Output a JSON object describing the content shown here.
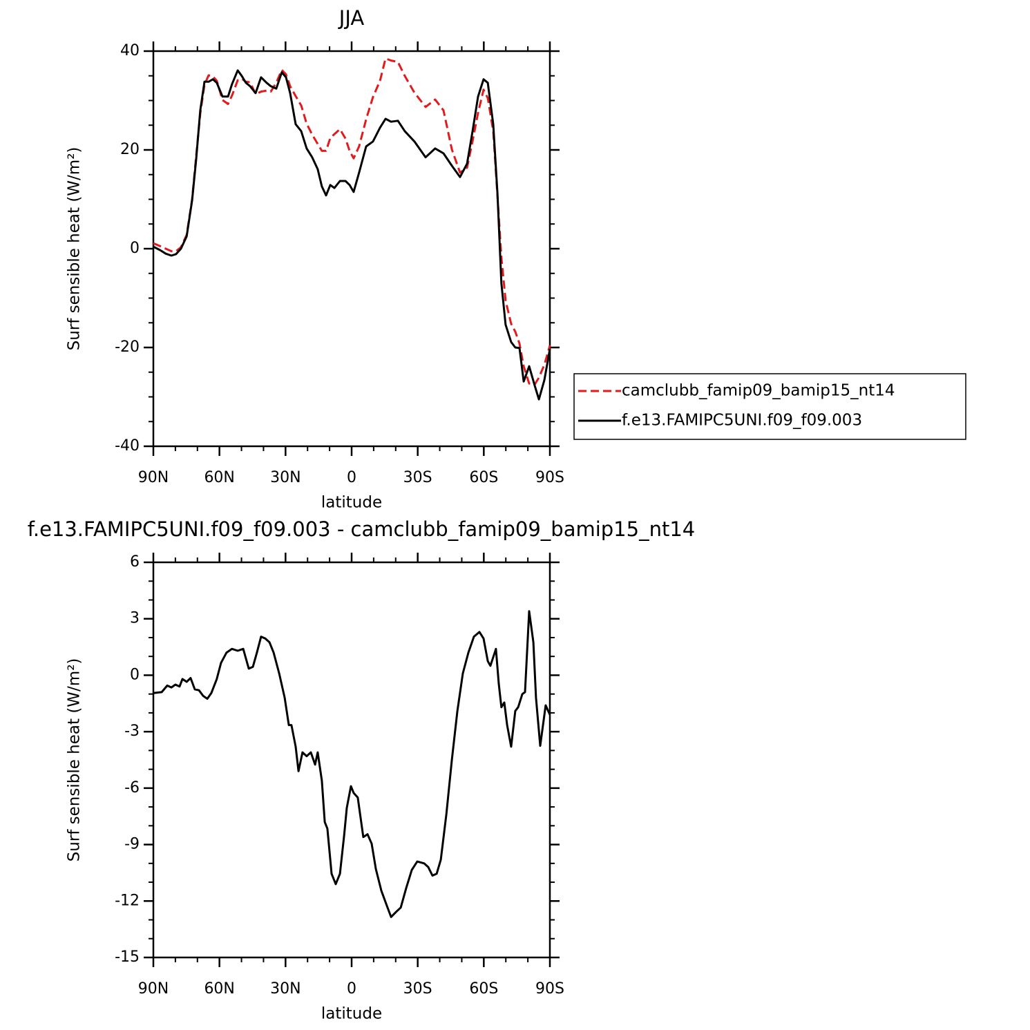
{
  "chart_data": [
    {
      "type": "line",
      "title": "JJA",
      "xlabel": "latitude",
      "ylabel": "Surf sensible heat (W/m²)",
      "x": [
        90,
        86.9,
        84.4,
        81.8,
        79.7,
        77.5,
        74.9,
        72.4,
        70.6,
        68.7,
        66.8,
        64.9,
        63.0,
        61.2,
        58.6,
        56.1,
        54.3,
        51.7,
        49.9,
        48.0,
        46.1,
        43.6,
        41.1,
        38.6,
        36.7,
        34.2,
        31.7,
        29.8,
        27.9,
        25.4,
        22.9,
        20.4,
        17.9,
        15.4,
        13.5,
        11.6,
        9.7,
        7.8,
        5.3,
        2.8,
        0.9,
        -0.9,
        -3.4,
        -6.6,
        -9.7,
        -12.9,
        -15.4,
        -17.9,
        -21.0,
        -24.1,
        -28.5,
        -33.6,
        -37.9,
        -41.7,
        -45.5,
        -49.2,
        -52.4,
        -54.9,
        -57.4,
        -59.9,
        -61.8,
        -64.3,
        -66.2,
        -68.0,
        -69.9,
        -72.4,
        -74.3,
        -76.2,
        -78.1,
        -80.6,
        -83.1,
        -85.0,
        -87.5,
        -90
      ],
      "series": [
        {
          "name": "camclubb_famip09_bamip15_nt14",
          "color": "#e31a1c",
          "style": "dashed",
          "values": [
            1.1,
            0.5,
            0,
            -0.5,
            -0.5,
            0.3,
            2.8,
            10,
            18.7,
            27.3,
            33.2,
            35.1,
            34.9,
            34,
            30.1,
            29.3,
            31,
            34.1,
            34.4,
            33.8,
            33.7,
            31.3,
            31.8,
            32,
            31.8,
            33.6,
            36.2,
            35.3,
            32.9,
            30.9,
            29,
            25.3,
            23.1,
            21.2,
            19.8,
            19.8,
            22.4,
            23.2,
            24.2,
            22.3,
            19.8,
            18.3,
            20.7,
            26.2,
            30.7,
            34,
            38.5,
            38.1,
            37.8,
            35,
            31.6,
            28.7,
            30.2,
            28,
            20.1,
            15.4,
            16.4,
            21.8,
            27.5,
            32.2,
            30.5,
            23.8,
            10.7,
            -1.8,
            -10.5,
            -15.2,
            -16.8,
            -19.2,
            -23.8,
            -27.3,
            -27.5,
            -26.1,
            -23.5,
            -19.6
          ]
        },
        {
          "name": "f.e13.FAMIPC5UNI.f09_f09.003",
          "color": "#000000",
          "style": "solid",
          "values": [
            0.4,
            -0.3,
            -1,
            -1.4,
            -1.1,
            0,
            2.5,
            9.8,
            18,
            28,
            33.8,
            33.8,
            34.3,
            33.6,
            30.8,
            30.8,
            33.3,
            36.1,
            35,
            33.6,
            32.9,
            31.5,
            34.7,
            33.6,
            32.9,
            32.4,
            35.7,
            34.7,
            31.5,
            25.2,
            23.8,
            20.3,
            18.5,
            16.1,
            12.6,
            10.8,
            12.9,
            12.3,
            13.7,
            13.7,
            12.9,
            11.5,
            15.4,
            20.7,
            21.7,
            24.5,
            26.3,
            25.7,
            25.9,
            23.8,
            21.7,
            18.5,
            20.3,
            19.3,
            16.8,
            14.5,
            17.2,
            23.8,
            30.8,
            34.3,
            33.6,
            25.2,
            11.2,
            -7,
            -15.4,
            -18.9,
            -20,
            -20.1,
            -26.9,
            -23.8,
            -27.7,
            -30.5,
            -26.6,
            -20.3
          ]
        }
      ],
      "xlim": [
        90,
        -90
      ],
      "xticks": [
        {
          "value": 90,
          "label": "90N"
        },
        {
          "value": 60,
          "label": "60N"
        },
        {
          "value": 30,
          "label": "30N"
        },
        0,
        {
          "value": -30,
          "label": "30S"
        },
        {
          "value": -60,
          "label": "60S"
        },
        {
          "value": -90,
          "label": "90S"
        }
      ],
      "ylim": [
        -40,
        40
      ],
      "yticks": [
        -40,
        -20,
        0,
        20,
        40
      ],
      "legend": "right"
    },
    {
      "type": "line",
      "title": "f.e13.FAMIPC5UNI.f09_f09.003 - camclubb_famip09_bamip15_nt14",
      "xlabel": "latitude",
      "ylabel": "Surf sensible heat (W/m²)",
      "x": [
        90,
        86.2,
        83.7,
        81.8,
        80.0,
        78.1,
        76.8,
        74.9,
        73.1,
        71.2,
        69.3,
        67.4,
        65.5,
        63.7,
        61.2,
        59.3,
        56.8,
        54.3,
        51.7,
        49.2,
        46.7,
        44.8,
        43.0,
        41.1,
        39.2,
        37.3,
        35.4,
        32.9,
        30.4,
        28.5,
        27.3,
        25.4,
        24.1,
        22.3,
        20.4,
        18.5,
        16.6,
        15.4,
        13.5,
        12.2,
        11.0,
        9.1,
        7.2,
        5.3,
        3.4,
        2.2,
        0.3,
        -0.9,
        -2.8,
        -5.3,
        -7.2,
        -9.1,
        -11.0,
        -13.5,
        -16.0,
        -17.9,
        -20.4,
        -22.3,
        -24.8,
        -27.3,
        -29.8,
        -32.9,
        -34.8,
        -36.7,
        -38.6,
        -40.5,
        -43.0,
        -45.5,
        -48.0,
        -50.5,
        -53.0,
        -55.5,
        -58.0,
        -59.9,
        -61.8,
        -63.0,
        -65.5,
        -66.8,
        -68.0,
        -69.3,
        -70.6,
        -72.4,
        -74.3,
        -75.6,
        -77.5,
        -78.7,
        -80.6,
        -82.5,
        -83.7,
        -85.6,
        -88.1,
        -90
      ],
      "series": [
        {
          "color": "#000000",
          "style": "solid",
          "values": [
            -0.95,
            -0.9,
            -0.55,
            -0.65,
            -0.5,
            -0.6,
            -0.2,
            -0.35,
            -0.15,
            -0.75,
            -0.8,
            -1.1,
            -1.25,
            -0.95,
            -0.2,
            0.65,
            1.2,
            1.4,
            1.3,
            1.4,
            0.35,
            0.45,
            1.2,
            2.05,
            1.95,
            1.75,
            1.2,
            0.1,
            -1.2,
            -2.65,
            -2.65,
            -3.8,
            -5.1,
            -4.1,
            -4.3,
            -4.1,
            -4.75,
            -4.1,
            -5.6,
            -7.8,
            -8.15,
            -10.55,
            -11.1,
            -10.55,
            -8.5,
            -7.05,
            -5.9,
            -6.25,
            -6.5,
            -8.6,
            -8.45,
            -8.95,
            -10.3,
            -11.45,
            -12.25,
            -12.85,
            -12.55,
            -12.35,
            -11.3,
            -10.35,
            -9.9,
            -10,
            -10.2,
            -10.65,
            -10.55,
            -9.8,
            -7.4,
            -4.5,
            -1.9,
            0.1,
            1.2,
            2.05,
            2.3,
            1.95,
            0.75,
            0.5,
            1.4,
            -0.45,
            -1.7,
            -1.45,
            -2.65,
            -3.8,
            -1.9,
            -1.7,
            -1,
            -0.9,
            3.4,
            1.75,
            -1.2,
            -3.75,
            -1.6,
            -2.1
          ]
        }
      ],
      "xlim": [
        90,
        -90
      ],
      "xticks": [
        {
          "value": 90,
          "label": "90N"
        },
        {
          "value": 60,
          "label": "60N"
        },
        {
          "value": 30,
          "label": "30N"
        },
        0,
        {
          "value": -30,
          "label": "30S"
        },
        {
          "value": -60,
          "label": "60S"
        },
        {
          "value": -90,
          "label": "90S"
        }
      ],
      "ylim": [
        -15,
        6
      ],
      "yticks": [
        -15,
        -12,
        -9,
        -6,
        -3,
        0,
        3,
        6
      ]
    }
  ]
}
